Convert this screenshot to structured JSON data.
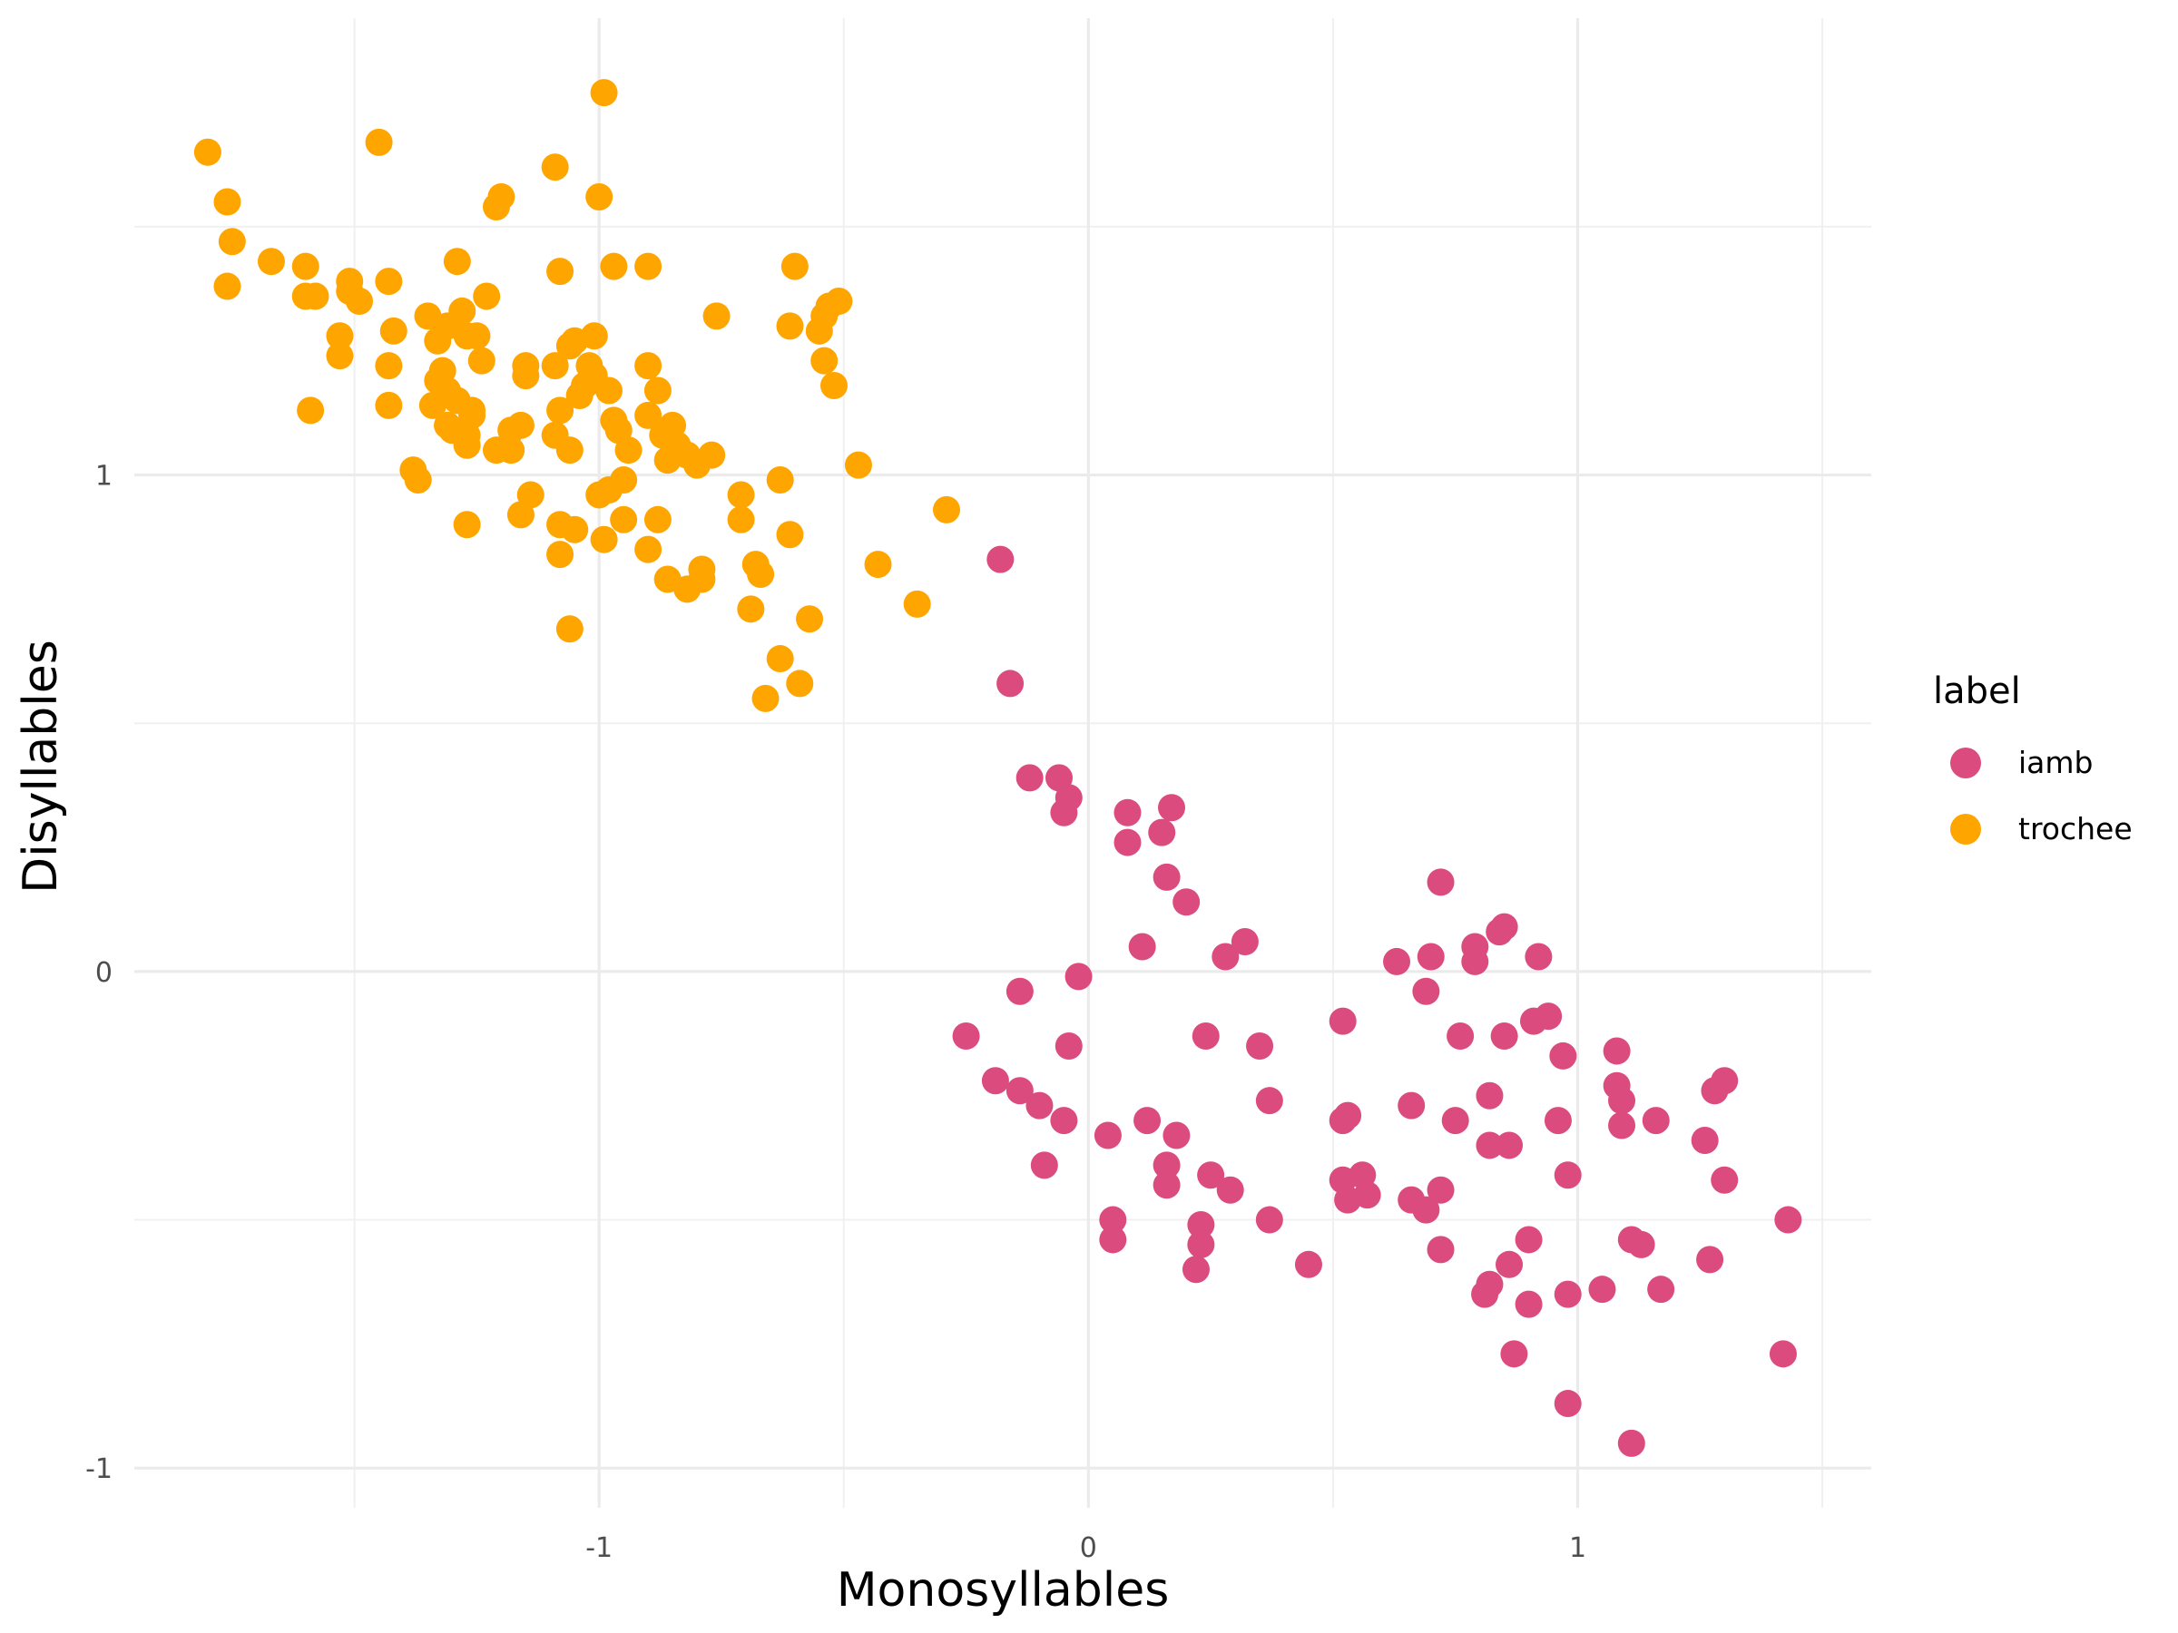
{
  "chart_data": {
    "type": "scatter",
    "xlabel": "Monosyllables",
    "ylabel": "Disyllables",
    "xlim": [
      -1.95,
      1.6
    ],
    "ylim": [
      -1.08,
      1.92
    ],
    "x_ticks": [
      -1,
      0,
      1
    ],
    "y_ticks": [
      -1,
      0,
      1
    ],
    "x_tick_labels": [
      "-1",
      "0",
      "1"
    ],
    "y_tick_labels": [
      "-1",
      "0",
      "1"
    ],
    "grid": true,
    "legend": {
      "title": "label",
      "position": "right"
    },
    "series": [
      {
        "name": "iamb",
        "color": "#DB4B7E",
        "points": [
          [
            -0.18,
            0.83
          ],
          [
            -0.16,
            0.58
          ],
          [
            -0.12,
            0.39
          ],
          [
            -0.06,
            0.39
          ],
          [
            -0.04,
            0.35
          ],
          [
            -0.05,
            0.32
          ],
          [
            0.08,
            0.32
          ],
          [
            0.17,
            0.33
          ],
          [
            0.15,
            0.28
          ],
          [
            0.08,
            0.26
          ],
          [
            0.16,
            0.19
          ],
          [
            0.2,
            0.14
          ],
          [
            0.11,
            0.05
          ],
          [
            0.28,
            0.03
          ],
          [
            0.32,
            0.06
          ],
          [
            -0.02,
            -0.01
          ],
          [
            -0.14,
            -0.04
          ],
          [
            -0.25,
            -0.13
          ],
          [
            -0.04,
            -0.15
          ],
          [
            0.24,
            -0.13
          ],
          [
            0.35,
            -0.15
          ],
          [
            -0.19,
            -0.22
          ],
          [
            -0.14,
            -0.24
          ],
          [
            -0.1,
            -0.27
          ],
          [
            -0.05,
            -0.3
          ],
          [
            0.04,
            -0.33
          ],
          [
            0.12,
            -0.3
          ],
          [
            0.18,
            -0.33
          ],
          [
            0.37,
            -0.26
          ],
          [
            -0.09,
            -0.39
          ],
          [
            0.16,
            -0.39
          ],
          [
            0.16,
            -0.43
          ],
          [
            0.25,
            -0.41
          ],
          [
            0.29,
            -0.44
          ],
          [
            0.05,
            -0.5
          ],
          [
            0.05,
            -0.54
          ],
          [
            0.23,
            -0.51
          ],
          [
            0.23,
            -0.55
          ],
          [
            0.22,
            -0.6
          ],
          [
            0.37,
            -0.5
          ],
          [
            0.45,
            -0.59
          ],
          [
            0.52,
            -0.1
          ],
          [
            0.52,
            -0.3
          ],
          [
            0.53,
            -0.29
          ],
          [
            0.52,
            -0.42
          ],
          [
            0.53,
            -0.46
          ],
          [
            0.56,
            -0.41
          ],
          [
            0.57,
            -0.45
          ],
          [
            0.63,
            0.02
          ],
          [
            0.7,
            0.03
          ],
          [
            0.69,
            -0.04
          ],
          [
            0.72,
            0.18
          ],
          [
            0.66,
            -0.27
          ],
          [
            0.66,
            -0.46
          ],
          [
            0.69,
            -0.48
          ],
          [
            0.72,
            -0.44
          ],
          [
            0.72,
            -0.56
          ],
          [
            0.75,
            -0.3
          ],
          [
            0.76,
            -0.13
          ],
          [
            0.79,
            0.05
          ],
          [
            0.79,
            0.02
          ],
          [
            0.82,
            -0.25
          ],
          [
            0.82,
            -0.35
          ],
          [
            0.82,
            -0.63
          ],
          [
            0.81,
            -0.65
          ],
          [
            0.84,
            0.08
          ],
          [
            0.85,
            0.09
          ],
          [
            0.85,
            -0.13
          ],
          [
            0.86,
            -0.35
          ],
          [
            0.86,
            -0.59
          ],
          [
            0.87,
            -0.77
          ],
          [
            0.9,
            -0.67
          ],
          [
            0.9,
            -0.54
          ],
          [
            0.91,
            -0.1
          ],
          [
            0.92,
            0.03
          ],
          [
            0.94,
            -0.09
          ],
          [
            0.96,
            -0.3
          ],
          [
            0.97,
            -0.17
          ],
          [
            0.98,
            -0.41
          ],
          [
            0.98,
            -0.65
          ],
          [
            0.98,
            -0.87
          ],
          [
            1.05,
            -0.64
          ],
          [
            1.08,
            -0.16
          ],
          [
            1.08,
            -0.23
          ],
          [
            1.09,
            -0.26
          ],
          [
            1.09,
            -0.31
          ],
          [
            1.11,
            -0.54
          ],
          [
            1.13,
            -0.55
          ],
          [
            1.11,
            -0.95
          ],
          [
            1.16,
            -0.3
          ],
          [
            1.17,
            -0.64
          ],
          [
            1.26,
            -0.34
          ],
          [
            1.27,
            -0.58
          ],
          [
            1.28,
            -0.24
          ],
          [
            1.3,
            -0.22
          ],
          [
            1.3,
            -0.42
          ],
          [
            1.43,
            -0.5
          ],
          [
            1.42,
            -0.77
          ]
        ]
      },
      {
        "name": "trochee",
        "color": "#FFA500",
        "points": [
          [
            -1.8,
            1.65
          ],
          [
            -1.76,
            1.55
          ],
          [
            -1.75,
            1.47
          ],
          [
            -1.76,
            1.38
          ],
          [
            -1.67,
            1.43
          ],
          [
            -1.6,
            1.42
          ],
          [
            -1.6,
            1.36
          ],
          [
            -1.58,
            1.36
          ],
          [
            -1.59,
            1.13
          ],
          [
            -1.53,
            1.28
          ],
          [
            -1.53,
            1.24
          ],
          [
            -1.51,
            1.39
          ],
          [
            -1.51,
            1.37
          ],
          [
            -1.49,
            1.35
          ],
          [
            -1.45,
            1.67
          ],
          [
            -1.43,
            1.39
          ],
          [
            -1.43,
            1.22
          ],
          [
            -1.43,
            1.14
          ],
          [
            -1.42,
            1.29
          ],
          [
            -1.38,
            1.01
          ],
          [
            -1.37,
            0.99
          ],
          [
            -1.35,
            1.32
          ],
          [
            -1.34,
            1.14
          ],
          [
            -1.33,
            1.19
          ],
          [
            -1.33,
            1.27
          ],
          [
            -1.32,
            1.21
          ],
          [
            -1.31,
            1.17
          ],
          [
            -1.31,
            1.3
          ],
          [
            -1.31,
            1.1
          ],
          [
            -1.3,
            1.09
          ],
          [
            -1.29,
            1.15
          ],
          [
            -1.29,
            1.43
          ],
          [
            -1.28,
            1.33
          ],
          [
            -1.27,
            1.28
          ],
          [
            -1.27,
            1.08
          ],
          [
            -1.27,
            1.06
          ],
          [
            -1.27,
            0.9
          ],
          [
            -1.26,
            1.13
          ],
          [
            -1.26,
            1.12
          ],
          [
            -1.25,
            1.28
          ],
          [
            -1.24,
            1.23
          ],
          [
            -1.23,
            1.36
          ],
          [
            -1.21,
            1.54
          ],
          [
            -1.2,
            1.56
          ],
          [
            -1.21,
            1.05
          ],
          [
            -1.18,
            1.05
          ],
          [
            -1.18,
            1.09
          ],
          [
            -1.16,
            1.1
          ],
          [
            -1.16,
            0.92
          ],
          [
            -1.15,
            1.2
          ],
          [
            -1.15,
            1.22
          ],
          [
            -1.14,
            0.96
          ],
          [
            -1.09,
            1.62
          ],
          [
            -1.08,
            1.41
          ],
          [
            -1.09,
            1.22
          ],
          [
            -1.09,
            1.08
          ],
          [
            -1.08,
            1.13
          ],
          [
            -1.08,
            0.9
          ],
          [
            -1.08,
            0.84
          ],
          [
            -1.06,
            1.05
          ],
          [
            -1.06,
            1.26
          ],
          [
            -1.05,
            1.27
          ],
          [
            -1.06,
            0.69
          ],
          [
            -1.05,
            0.89
          ],
          [
            -1.04,
            1.16
          ],
          [
            -1.03,
            1.18
          ],
          [
            -1.02,
            1.22
          ],
          [
            -1.01,
            1.2
          ],
          [
            -1.01,
            1.28
          ],
          [
            -1.0,
            1.56
          ],
          [
            -1.0,
            0.96
          ],
          [
            -0.99,
            0.87
          ],
          [
            -0.99,
            1.77
          ],
          [
            -0.98,
            1.17
          ],
          [
            -0.98,
            0.97
          ],
          [
            -0.97,
            1.11
          ],
          [
            -0.97,
            1.42
          ],
          [
            -0.96,
            1.09
          ],
          [
            -0.95,
            0.99
          ],
          [
            -0.95,
            0.91
          ],
          [
            -0.94,
            1.05
          ],
          [
            -0.9,
            1.42
          ],
          [
            -0.9,
            1.22
          ],
          [
            -0.9,
            1.12
          ],
          [
            -0.9,
            0.85
          ],
          [
            -0.88,
            1.17
          ],
          [
            -0.88,
            0.91
          ],
          [
            -0.87,
            1.08
          ],
          [
            -0.86,
            0.79
          ],
          [
            -0.86,
            1.03
          ],
          [
            -0.85,
            1.1
          ],
          [
            -0.84,
            1.06
          ],
          [
            -0.82,
            1.04
          ],
          [
            -0.82,
            0.77
          ],
          [
            -0.8,
            1.02
          ],
          [
            -0.79,
            0.79
          ],
          [
            -0.79,
            0.81
          ],
          [
            -0.77,
            1.04
          ],
          [
            -0.76,
            1.32
          ],
          [
            -0.71,
            0.96
          ],
          [
            -0.71,
            0.91
          ],
          [
            -0.69,
            0.73
          ],
          [
            -0.68,
            0.82
          ],
          [
            -0.67,
            0.8
          ],
          [
            -0.66,
            0.55
          ],
          [
            -0.63,
            0.63
          ],
          [
            -0.63,
            0.99
          ],
          [
            -0.61,
            0.88
          ],
          [
            -0.6,
            1.42
          ],
          [
            -0.61,
            1.3
          ],
          [
            -0.59,
            0.58
          ],
          [
            -0.57,
            0.71
          ],
          [
            -0.55,
            1.29
          ],
          [
            -0.54,
            1.32
          ],
          [
            -0.54,
            1.23
          ],
          [
            -0.53,
            1.34
          ],
          [
            -0.51,
            1.35
          ],
          [
            -0.52,
            1.18
          ],
          [
            -0.47,
            1.02
          ],
          [
            -0.43,
            0.82
          ],
          [
            -0.35,
            0.74
          ],
          [
            -0.29,
            0.93
          ]
        ]
      }
    ]
  }
}
